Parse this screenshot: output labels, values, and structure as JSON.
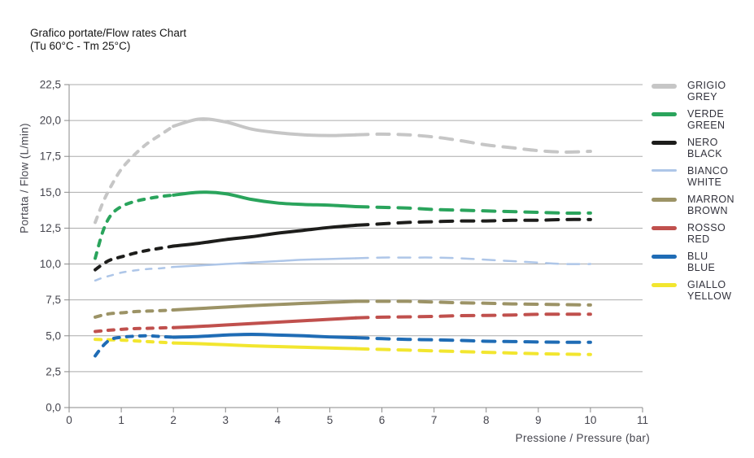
{
  "title": {
    "line1": "Grafico portate/Flow rates Chart",
    "line2": "(Tu 60°C - Tm 25°C)"
  },
  "axes": {
    "y_label": "Portata / Flow (L/min)",
    "x_label": "Pressione / Pressure (bar)",
    "y_tick_labels": [
      "22,5",
      "20,0",
      "17,5",
      "15,0",
      "12,5",
      "10,0",
      "7,5",
      "5,0",
      "2,5",
      "0,0"
    ],
    "x_tick_labels": [
      "0",
      "1",
      "2",
      "3",
      "4",
      "5",
      "6",
      "7",
      "8",
      "9",
      "10",
      "11"
    ]
  },
  "legend": {
    "items": [
      {
        "line1": "GRIGIO",
        "line2": "GREY",
        "color": "#c6c6c6"
      },
      {
        "line1": "VERDE",
        "line2": "GREEN",
        "color": "#2aa45c"
      },
      {
        "line1": "NERO",
        "line2": "BLACK",
        "color": "#1d1d1b"
      },
      {
        "line1": "BIANCO",
        "line2": "WHITE",
        "color": "#aec6e8"
      },
      {
        "line1": "MARRON",
        "line2": "BROWN",
        "color": "#9c9366"
      },
      {
        "line1": "ROSSO",
        "line2": "RED",
        "color": "#c0504d"
      },
      {
        "line1": "BLU",
        "line2": "BLUE",
        "color": "#1f6cb5"
      },
      {
        "line1": "GIALLO",
        "line2": "YELLOW",
        "color": "#f2e62f"
      }
    ]
  },
  "chart_data": {
    "type": "line",
    "title": "Grafico portate/Flow rates Chart (Tu 60°C - Tm 25°C)",
    "xlabel": "Pressione / Pressure (bar)",
    "ylabel": "Portata / Flow (L/min)",
    "xlim": [
      0,
      11
    ],
    "ylim": [
      0,
      22.5
    ],
    "x_ticks": [
      0,
      1,
      2,
      3,
      4,
      5,
      6,
      7,
      8,
      9,
      10,
      11
    ],
    "y_ticks": [
      0,
      2.5,
      5,
      7.5,
      10,
      12.5,
      15,
      17.5,
      20,
      22.5
    ],
    "grid": "horizontal",
    "legend_position": "right",
    "x": [
      0.5,
      0.65,
      0.8,
      1,
      1.25,
      1.5,
      1.75,
      2,
      2.5,
      3,
      3.5,
      4,
      4.5,
      5,
      5.5,
      6,
      6.5,
      7,
      7.5,
      8,
      8.5,
      9,
      9.5,
      10
    ],
    "dash_style": {
      "solid_from_index": 7,
      "solid_to_index": 14,
      "left_dash": "7 9",
      "right_dash": "15 11"
    },
    "series": [
      {
        "name": "GRIGIO GREY",
        "color": "#c6c6c6",
        "width": 4,
        "values": [
          12.9,
          14.3,
          15.4,
          16.6,
          17.6,
          18.4,
          19.0,
          19.6,
          20.1,
          19.9,
          19.4,
          19.15,
          19.0,
          18.95,
          19.0,
          19.05,
          19.0,
          18.85,
          18.6,
          18.3,
          18.1,
          17.9,
          17.8,
          17.85
        ]
      },
      {
        "name": "VERDE GREEN",
        "color": "#2aa45c",
        "width": 4,
        "values": [
          10.4,
          12.3,
          13.4,
          14.0,
          14.35,
          14.55,
          14.7,
          14.8,
          15.0,
          14.9,
          14.5,
          14.25,
          14.15,
          14.1,
          14.0,
          13.95,
          13.9,
          13.8,
          13.75,
          13.7,
          13.65,
          13.6,
          13.55,
          13.55
        ]
      },
      {
        "name": "NERO BLACK",
        "color": "#1d1d1b",
        "width": 4,
        "values": [
          9.6,
          10.0,
          10.3,
          10.5,
          10.75,
          10.95,
          11.1,
          11.25,
          11.45,
          11.7,
          11.9,
          12.15,
          12.35,
          12.55,
          12.7,
          12.8,
          12.9,
          12.95,
          13.0,
          13.0,
          13.05,
          13.05,
          13.1,
          13.1
        ]
      },
      {
        "name": "BIANCO WHITE",
        "color": "#aec6e8",
        "width": 2.5,
        "values": [
          8.85,
          9.05,
          9.2,
          9.4,
          9.55,
          9.65,
          9.7,
          9.8,
          9.9,
          10.0,
          10.1,
          10.2,
          10.3,
          10.35,
          10.4,
          10.45,
          10.45,
          10.45,
          10.4,
          10.3,
          10.2,
          10.1,
          10.0,
          10.0
        ]
      },
      {
        "name": "MARRON BROWN",
        "color": "#9c9366",
        "width": 4,
        "values": [
          6.3,
          6.45,
          6.55,
          6.6,
          6.68,
          6.72,
          6.75,
          6.8,
          6.9,
          7.0,
          7.1,
          7.18,
          7.26,
          7.33,
          7.4,
          7.4,
          7.4,
          7.35,
          7.3,
          7.27,
          7.22,
          7.2,
          7.17,
          7.15
        ]
      },
      {
        "name": "ROSSO RED",
        "color": "#c0504d",
        "width": 4,
        "values": [
          5.3,
          5.35,
          5.4,
          5.45,
          5.5,
          5.52,
          5.55,
          5.57,
          5.65,
          5.75,
          5.85,
          5.95,
          6.05,
          6.15,
          6.25,
          6.3,
          6.32,
          6.35,
          6.4,
          6.42,
          6.45,
          6.5,
          6.5,
          6.5
        ]
      },
      {
        "name": "GIALLO YELLOW",
        "color": "#f2e62f",
        "width": 4,
        "values": [
          4.75,
          4.73,
          4.72,
          4.7,
          4.65,
          4.6,
          4.55,
          4.5,
          4.45,
          4.38,
          4.3,
          4.25,
          4.2,
          4.15,
          4.1,
          4.05,
          4.0,
          3.95,
          3.9,
          3.85,
          3.8,
          3.75,
          3.72,
          3.7
        ]
      },
      {
        "name": "BLU BLUE",
        "color": "#1f6cb5",
        "width": 4,
        "values": [
          3.6,
          4.3,
          4.75,
          4.9,
          4.97,
          5.0,
          4.95,
          4.9,
          4.95,
          5.05,
          5.1,
          5.05,
          5.0,
          4.92,
          4.87,
          4.8,
          4.75,
          4.72,
          4.68,
          4.62,
          4.6,
          4.57,
          4.55,
          4.55
        ]
      }
    ]
  },
  "style": {
    "grid_color": "#ababab",
    "axis_color": "#8a8a8a",
    "tick_label_color": "#45454e",
    "title_color": "#141414"
  }
}
